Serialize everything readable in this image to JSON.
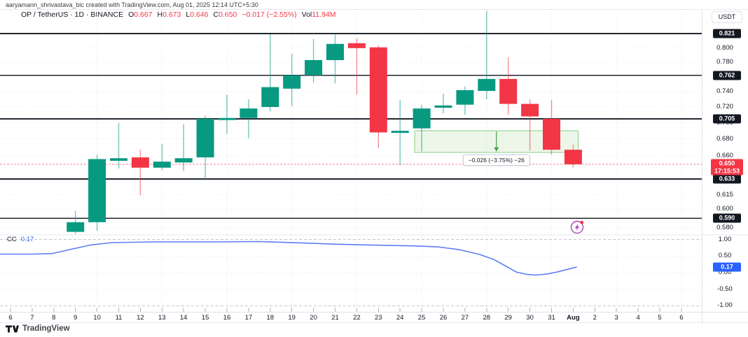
{
  "header": {
    "attribution": "aaryamann_shrivastava_bic created with TradingView.com, Aug 01, 2025 12:14 UTC+5:30"
  },
  "legend": {
    "symbol_line": "OP / TetherUS · 1D · BINANCE",
    "o_label": "O",
    "o_value": "0.667",
    "h_label": "H",
    "h_value": "0.673",
    "l_label": "L",
    "l_value": "0.646",
    "c_label": "C",
    "c_value": "0.650",
    "change": "−0.017 (−2.55%)",
    "vol_label": "Vol",
    "vol_value": "11.94M"
  },
  "indicator_legend": {
    "name": "CC",
    "value": "0.17"
  },
  "axis": {
    "currency": "USDT",
    "price_labels": [
      {
        "text": "0.800",
        "price": 0.8
      },
      {
        "text": "0.780",
        "price": 0.78
      },
      {
        "text": "0.740",
        "price": 0.74
      },
      {
        "text": "0.720",
        "price": 0.72
      },
      {
        "text": "0.700",
        "price": 0.7
      },
      {
        "text": "0.680",
        "price": 0.68
      },
      {
        "text": "0.660",
        "price": 0.66
      },
      {
        "text": "0.615",
        "price": 0.615
      },
      {
        "text": "0.600",
        "price": 0.6
      },
      {
        "text": "0.580",
        "price": 0.58
      }
    ],
    "level_badges": [
      "0.821",
      "0.762",
      "0.705",
      "0.633",
      "0.590"
    ],
    "last_price_badge": {
      "price": "0.650",
      "countdown": "17:15:53"
    },
    "indicator_labels": [
      {
        "text": "1.00",
        "value": 1.0
      },
      {
        "text": "0.50",
        "value": 0.5
      },
      {
        "text": "0.00",
        "value": 0.0
      },
      {
        "text": "-0.50",
        "value": -0.5
      },
      {
        "text": "-1.00",
        "value": -1.0
      }
    ],
    "indicator_badge": "0.17"
  },
  "time_axis": {
    "ticks": [
      "6",
      "7",
      "8",
      "9",
      "10",
      "11",
      "12",
      "13",
      "14",
      "15",
      "16",
      "17",
      "18",
      "19",
      "20",
      "21",
      "22",
      "23",
      "24",
      "25",
      "26",
      "27",
      "28",
      "29",
      "30",
      "31",
      "Aug",
      "2",
      "3",
      "4",
      "5",
      "6"
    ],
    "bold_tick": "Aug"
  },
  "measurement": {
    "label": "−0.026 (−3.75%) −26"
  },
  "floating_icon": {
    "name": "lightning-alert",
    "notification_dot": true
  },
  "watermark": {
    "text": "TradingView"
  },
  "colors": {
    "up": "#089981",
    "down": "#f23645",
    "level_line": "#23262e",
    "badge_dark": "#131722",
    "badge_red": "#f23645",
    "badge_blue": "#2962ff",
    "indicator_line": "#5d7df5",
    "grid": "#e8eaf0",
    "grid_dash": "#c2c6d1",
    "range_fill": "rgba(126,197,102,0.14)",
    "range_border": "#87ce87",
    "range_arrow": "#43a047",
    "alert_purple": "#ab47bc"
  },
  "chart_data": [
    {
      "type": "candlestick",
      "title": "OP / TetherUS · 1D · BINANCE",
      "scale": "log",
      "price_axis_currency": "USDT",
      "x_axis_range": [
        "Jul 6",
        "Aug 6"
      ],
      "start_tick_index": 3,
      "candles": [
        {
          "date": "Jul 9",
          "o": 0.576,
          "h": 0.598,
          "l": 0.574,
          "c": 0.586
        },
        {
          "date": "Jul 10",
          "o": 0.586,
          "h": 0.661,
          "l": 0.577,
          "c": 0.656
        },
        {
          "date": "Jul 11",
          "o": 0.654,
          "h": 0.7,
          "l": 0.645,
          "c": 0.657
        },
        {
          "date": "Jul 12",
          "o": 0.658,
          "h": 0.667,
          "l": 0.615,
          "c": 0.646
        },
        {
          "date": "Jul 13",
          "o": 0.646,
          "h": 0.674,
          "l": 0.643,
          "c": 0.653
        },
        {
          "date": "Jul 14",
          "o": 0.652,
          "h": 0.698,
          "l": 0.642,
          "c": 0.657
        },
        {
          "date": "Jul 15",
          "o": 0.658,
          "h": 0.709,
          "l": 0.632,
          "c": 0.705
        },
        {
          "date": "Jul 16",
          "o": 0.704,
          "h": 0.736,
          "l": 0.686,
          "c": 0.706
        },
        {
          "date": "Jul 17",
          "o": 0.706,
          "h": 0.73,
          "l": 0.681,
          "c": 0.718
        },
        {
          "date": "Jul 18",
          "o": 0.72,
          "h": 0.82,
          "l": 0.714,
          "c": 0.746
        },
        {
          "date": "Jul 19",
          "o": 0.744,
          "h": 0.792,
          "l": 0.721,
          "c": 0.762
        },
        {
          "date": "Jul 20",
          "o": 0.762,
          "h": 0.813,
          "l": 0.752,
          "c": 0.783
        },
        {
          "date": "Jul 21",
          "o": 0.783,
          "h": 0.821,
          "l": 0.751,
          "c": 0.806
        },
        {
          "date": "Jul 22",
          "o": 0.807,
          "h": 0.814,
          "l": 0.736,
          "c": 0.8
        },
        {
          "date": "Jul 23",
          "o": 0.801,
          "h": 0.804,
          "l": 0.669,
          "c": 0.688
        },
        {
          "date": "Jul 24",
          "o": 0.688,
          "h": 0.729,
          "l": 0.649,
          "c": 0.69
        },
        {
          "date": "Jul 25",
          "o": 0.693,
          "h": 0.723,
          "l": 0.665,
          "c": 0.718
        },
        {
          "date": "Jul 26",
          "o": 0.719,
          "h": 0.737,
          "l": 0.712,
          "c": 0.722
        },
        {
          "date": "Jul 27",
          "o": 0.723,
          "h": 0.747,
          "l": 0.71,
          "c": 0.742
        },
        {
          "date": "Jul 28",
          "o": 0.741,
          "h": 0.855,
          "l": 0.73,
          "c": 0.757
        },
        {
          "date": "Jul 29",
          "o": 0.757,
          "h": 0.787,
          "l": 0.71,
          "c": 0.724
        },
        {
          "date": "Jul 30",
          "o": 0.724,
          "h": 0.73,
          "l": 0.666,
          "c": 0.708
        },
        {
          "date": "Jul 31",
          "o": 0.705,
          "h": 0.729,
          "l": 0.661,
          "c": 0.667
        },
        {
          "date": "Aug 1",
          "o": 0.667,
          "h": 0.673,
          "l": 0.646,
          "c": 0.65
        }
      ],
      "horizontal_levels": [
        0.821,
        0.762,
        0.705,
        0.633,
        0.59
      ],
      "last_price": 0.65,
      "price_range_box": {
        "from_price": 0.69,
        "to_price": 0.664,
        "start_date": "Jul 25",
        "end_date": "Aug 1",
        "label": "−0.026 (−3.75%) −26"
      }
    },
    {
      "type": "line",
      "name": "CC",
      "current_value": 0.17,
      "ylim": [
        -1.2,
        1.2
      ],
      "gridlines_dashed": [
        1.0,
        -1.0
      ],
      "gridlines_dotted": [
        0.5,
        0.0,
        -0.5
      ],
      "points": [
        [
          -0.49,
          0.56
        ],
        [
          0.97,
          0.56
        ],
        [
          1.94,
          0.58
        ],
        [
          2.75,
          0.7
        ],
        [
          3.72,
          0.84
        ],
        [
          4.69,
          0.91
        ],
        [
          6.63,
          0.93
        ],
        [
          9.22,
          0.93
        ],
        [
          11.49,
          0.94
        ],
        [
          13.43,
          0.9
        ],
        [
          15.05,
          0.86
        ],
        [
          16.99,
          0.83
        ],
        [
          18.61,
          0.81
        ],
        [
          19.74,
          0.78
        ],
        [
          20.71,
          0.7
        ],
        [
          21.68,
          0.55
        ],
        [
          22.33,
          0.4
        ],
        [
          22.88,
          0.2
        ],
        [
          23.37,
          0.02
        ],
        [
          23.85,
          -0.05
        ],
        [
          24.27,
          -0.075
        ],
        [
          24.76,
          -0.045
        ],
        [
          25.24,
          0.02
        ],
        [
          25.73,
          0.1
        ],
        [
          26.15,
          0.17
        ]
      ]
    }
  ]
}
